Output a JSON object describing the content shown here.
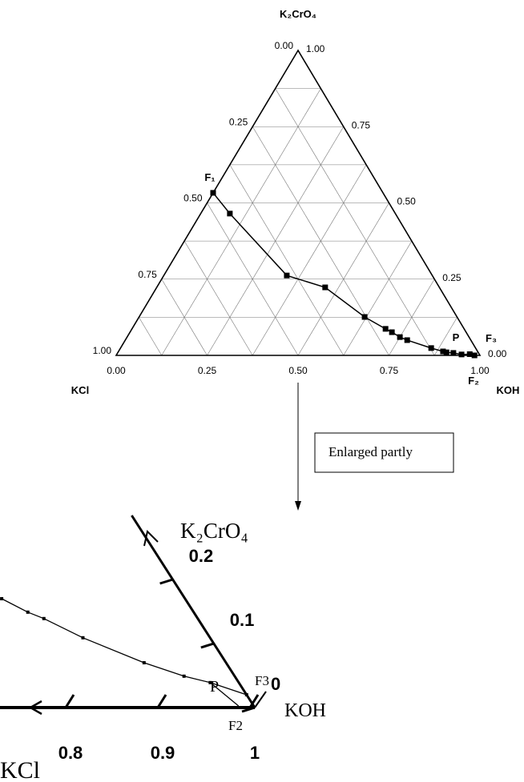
{
  "chart_data": [
    {
      "type": "ternary",
      "top_label": "K₂CrO₄",
      "left_label": "KCl",
      "right_label": "KOH",
      "koh": [
        0,
        0.08,
        0.338,
        0.463,
        0.62,
        0.697,
        0.72,
        0.75,
        0.775,
        0.854,
        0.892,
        0.903,
        0.923,
        0.948,
        0.97,
        0.985
      ],
      "k2cro4": [
        0.533,
        0.465,
        0.262,
        0.223,
        0.126,
        0.087,
        0.076,
        0.06,
        0.05,
        0.024,
        0.013,
        0.01,
        0.008,
        0.003,
        0.004,
        0
      ],
      "color": "#000000",
      "grid_divisions": 8,
      "left_ticks": [
        {
          "value": 0,
          "label": "0.00"
        },
        {
          "value": 0.25,
          "label": "0.25"
        },
        {
          "value": 0.5,
          "label": "0.50"
        },
        {
          "value": 0.75,
          "label": "0.75"
        },
        {
          "value": 1,
          "label": "1.00"
        }
      ],
      "right_ticks": [
        {
          "value": 1,
          "label": "1.00"
        },
        {
          "value": 0.75,
          "label": "0.75"
        },
        {
          "value": 0.5,
          "label": "0.50"
        },
        {
          "value": 0.25,
          "label": "0.25"
        },
        {
          "value": 0,
          "label": "0.00"
        }
      ],
      "bottom_ticks": [
        {
          "value": 0,
          "label": "0.00"
        },
        {
          "value": 0.25,
          "label": "0.25"
        },
        {
          "value": 0.5,
          "label": "0.50"
        },
        {
          "value": 0.75,
          "label": "0.75"
        },
        {
          "value": 1,
          "label": "1.00"
        }
      ],
      "point_labels": [
        "F₁",
        "P",
        "F₃",
        "F₂"
      ]
    },
    {
      "type": "ternary-zoom",
      "top_label": "K₂CrO₄",
      "left_label": "KCl",
      "right_label": "KOH",
      "koh": [
        0.631,
        0.671,
        0.694,
        0.753,
        0.841,
        0.896,
        0.93,
        0.98
      ],
      "k2cro4": [
        0.17,
        0.149,
        0.139,
        0.109,
        0.07,
        0.049,
        0.039,
        0.02
      ],
      "tie_koh": [
        0.93,
        0.981
      ],
      "tie_k2cro4": [
        0.039,
        0.0025
      ],
      "color": "#000000",
      "bottom_ticks": [
        0.8,
        0.9,
        1
      ],
      "right_ticks": [
        0,
        0.1,
        0.2
      ],
      "point_labels": [
        "P",
        "F3",
        "F2"
      ]
    }
  ],
  "annotation": "Enlarged partly"
}
